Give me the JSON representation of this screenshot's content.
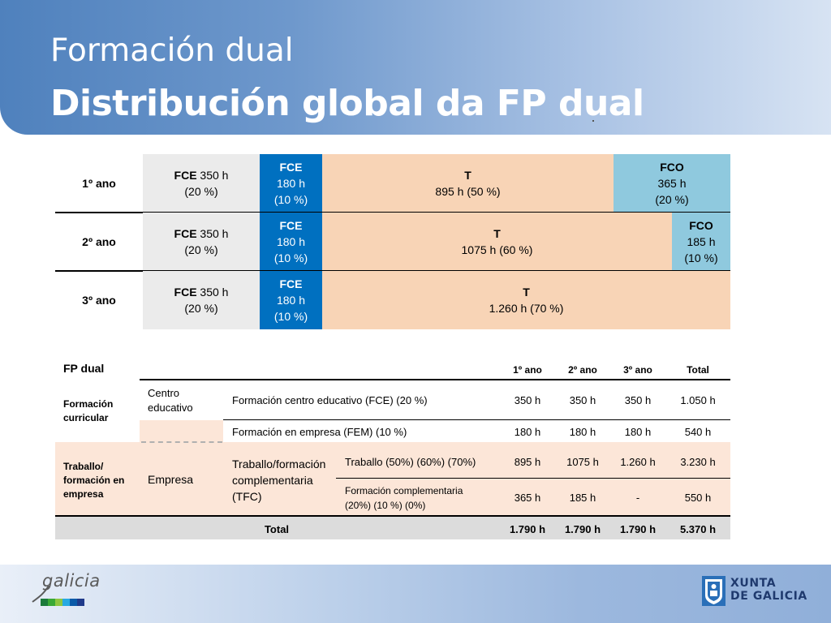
{
  "header": {
    "title": "Formación dual",
    "subtitle": "Distribución global da FP dual"
  },
  "distribution": {
    "rows": [
      {
        "year": "1º ano",
        "fce_bold": "FCE",
        "fce_hours": " 350 h",
        "fce_pct": "(20 %)",
        "fem_title": "FCE",
        "fem_hours": "180 h",
        "fem_pct": "(10 %)",
        "t_title": "T",
        "t_text": "895 h  (50 %)",
        "fco_title": "FCO",
        "fco_hours": "365 h",
        "fco_pct": "(20 %)",
        "t_share": 0.5,
        "fco_share": 0.2
      },
      {
        "year": "2º ano",
        "fce_bold": "FCE",
        "fce_hours": " 350 h",
        "fce_pct": "(20 %)",
        "fem_title": "FCE",
        "fem_hours": "180 h",
        "fem_pct": "(10 %)",
        "t_title": "T",
        "t_text": "1075 h  (60 %)",
        "fco_title": "FCO",
        "fco_hours": "185 h",
        "fco_pct": "(10 %)",
        "t_share": 0.6,
        "fco_share": 0.1
      },
      {
        "year": "3º ano",
        "fce_bold": "FCE",
        "fce_hours": " 350 h",
        "fce_pct": "(20 %)",
        "fem_title": "FCE",
        "fem_hours": "180 h",
        "fem_pct": "(10 %)",
        "t_title": "T",
        "t_text": "1.260 h  (70 %)",
        "fco_title": "",
        "fco_hours": "",
        "fco_pct": "",
        "t_share": 0.7,
        "fco_share": 0
      }
    ]
  },
  "fp_table": {
    "title": "FP dual",
    "col_headers": [
      "1º ano",
      "2º ano",
      "3º ano",
      "Total"
    ],
    "group_curricular": "Formación curricular",
    "group_traballo": "Traballo/ formación en empresa",
    "centro_educativo": "Centro educativo",
    "empresa": "Empresa",
    "tfc": "Traballo/formación complementaria (TFC)",
    "rows": [
      {
        "label": "Formación centro educativo (FCE) (20 %)",
        "values": [
          "350 h",
          "350 h",
          "350 h",
          "1.050 h"
        ]
      },
      {
        "label": "Formación en empresa (FEM) (10 %)",
        "values": [
          "180 h",
          "180 h",
          "180 h",
          "540 h"
        ]
      },
      {
        "label": "Traballo (50%) (60%) (70%)",
        "values": [
          "895 h",
          "1075 h",
          "1.260 h",
          "3.230 h"
        ]
      },
      {
        "label": "Formación complementaria (20%) (10 %) (0%)",
        "values": [
          "365 h",
          "185 h",
          "-",
          "550 h"
        ]
      }
    ],
    "total_label": "Total",
    "total_values": [
      "1.790 h",
      "1.790 h",
      "1.790 h",
      "5.370 h"
    ]
  },
  "footer": {
    "galicia_logo": "galicia",
    "xunta_line1": "XUNTA",
    "xunta_line2": "DE GALICIA",
    "colors": [
      "#1b7a3a",
      "#3aa935",
      "#8ec63f",
      "#27a9e1",
      "#0a5aa8",
      "#1f3a8a"
    ]
  },
  "colors": {
    "fce_grey": "#ebebeb",
    "fem_blue": "#0070c0",
    "t_peach": "#f8d4b6",
    "fco_cyan": "#8fc9de"
  }
}
